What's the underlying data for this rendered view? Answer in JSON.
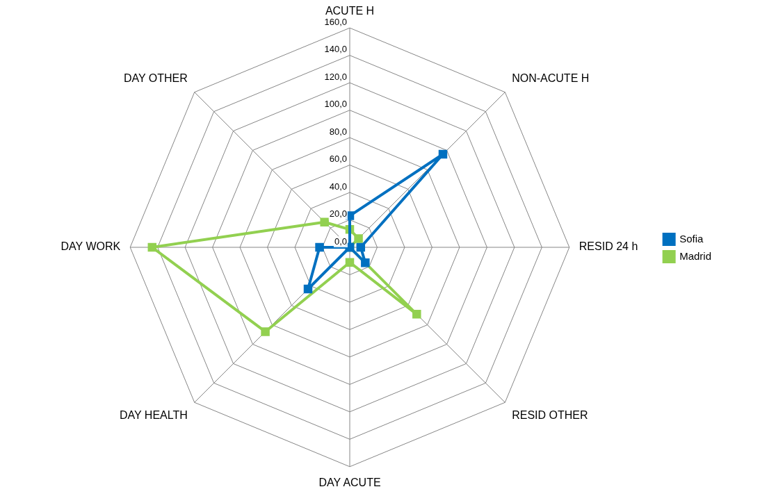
{
  "chart_data": {
    "type": "radar",
    "categories": [
      "ACUTE H",
      "NON-ACUTE H",
      "RESID 24 h",
      "RESID OTHER",
      "DAY ACUTE",
      "DAY HEALTH",
      "DAY WORK",
      "DAY OTHER"
    ],
    "series": [
      {
        "name": "Sofia",
        "color": "#0070c0",
        "values": [
          23,
          96,
          8,
          16,
          0,
          43,
          22,
          0
        ]
      },
      {
        "name": "Madrid",
        "color": "#92d050",
        "values": [
          13,
          9,
          0,
          69,
          11,
          87,
          144,
          26
        ]
      }
    ],
    "ylim": [
      0,
      160
    ],
    "yticks": [
      {
        "value": 0,
        "label": "0,0"
      },
      {
        "value": 20,
        "label": "20,0"
      },
      {
        "value": 40,
        "label": "40,0"
      },
      {
        "value": 60,
        "label": "60,0"
      },
      {
        "value": 80,
        "label": "80,0"
      },
      {
        "value": 100,
        "label": "100,0"
      },
      {
        "value": 120,
        "label": "120,0"
      },
      {
        "value": 140,
        "label": "140,0"
      },
      {
        "value": 160,
        "label": "160,0"
      }
    ],
    "grid": true,
    "legend": "right",
    "marker": "square"
  }
}
